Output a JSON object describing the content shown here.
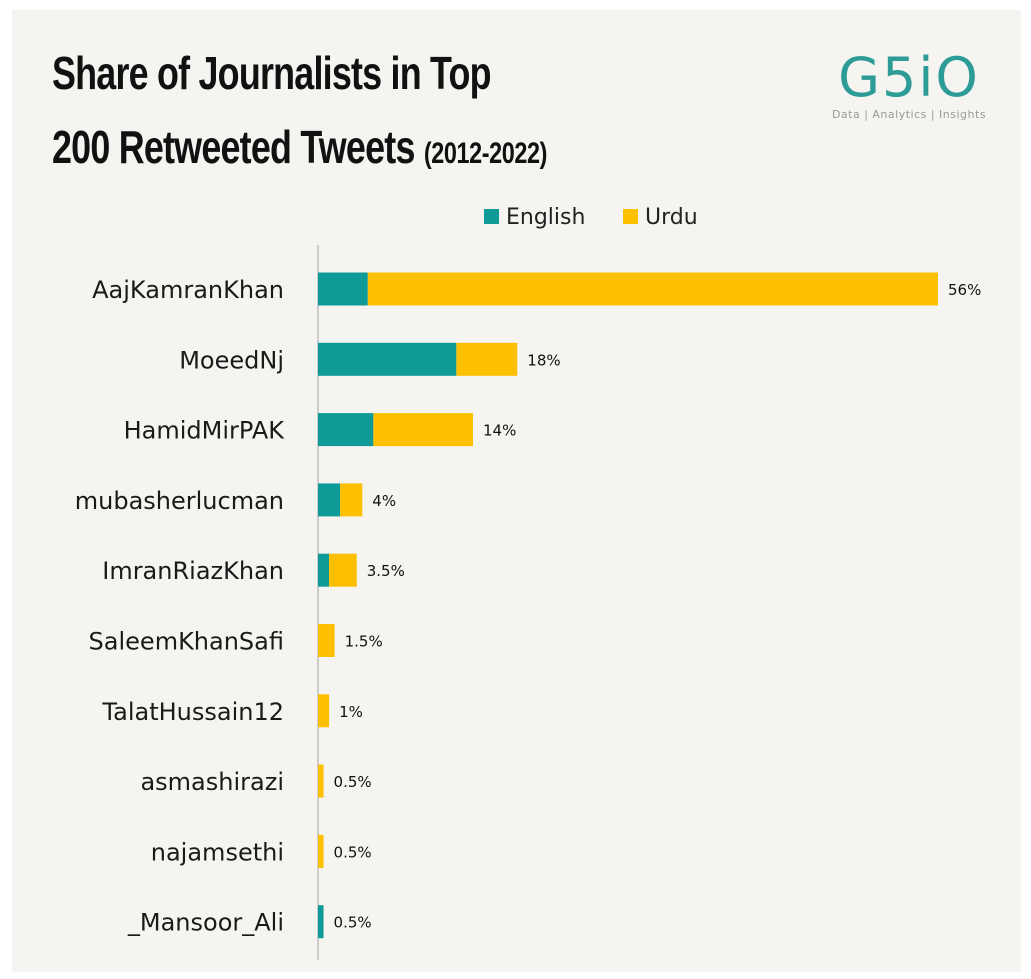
{
  "header": {
    "title_line1": "Share of Journalists in Top",
    "title_line2": "200 Retweeted Tweets",
    "title_years": "(2012-2022)"
  },
  "logo": {
    "mark": "G5iO",
    "tagline": "Data | Analytics | Insights"
  },
  "colors": {
    "english": "#0e9a96",
    "urdu": "#fcc000",
    "background": "#f5f4f0",
    "axis": "#cccccc"
  },
  "chart_data": {
    "type": "bar",
    "orientation": "horizontal",
    "stacked": true,
    "categories": [
      "AajKamranKhan",
      "MoeedNj",
      "HamidMirPAK",
      "mubasherlucman",
      "ImranRiazKhan",
      "SaleemKhanSafi",
      "TalatHussain12",
      "asmashirazi",
      "najamsethi",
      "_Mansoor_Ali"
    ],
    "series": [
      {
        "name": "English",
        "values": [
          4.5,
          12.5,
          5.0,
          2.0,
          1.0,
          0.0,
          0.0,
          0.0,
          0.0,
          0.5
        ]
      },
      {
        "name": "Urdu",
        "values": [
          51.5,
          5.5,
          9.0,
          2.0,
          2.5,
          1.5,
          1.0,
          0.5,
          0.5,
          0.0
        ]
      }
    ],
    "totals": [
      56,
      18,
      14,
      4,
      3.5,
      1.5,
      1,
      0.5,
      0.5,
      0.5
    ],
    "data_labels": [
      "56%",
      "18%",
      "14%",
      "4%",
      "3.5%",
      "1.5%",
      "1%",
      "0.5%",
      "0.5%",
      "0.5%"
    ],
    "xlim": [
      0,
      56
    ],
    "legend": {
      "position": "top-center",
      "entries": [
        "English",
        "Urdu"
      ]
    },
    "grid": false
  }
}
